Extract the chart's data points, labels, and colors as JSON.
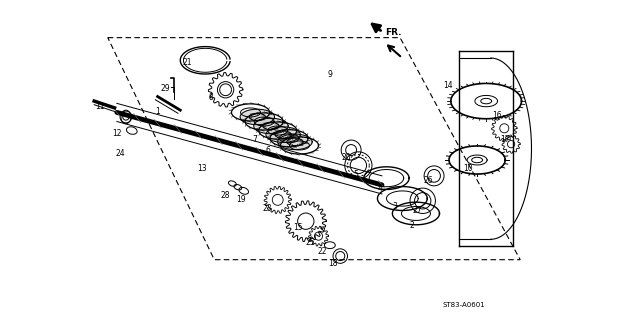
{
  "title": "",
  "diagram_code": "ST83-A0601",
  "background_color": "#ffffff",
  "line_color": "#000000",
  "fr_label": "FR.",
  "figsize": [
    6.37,
    3.2
  ],
  "dpi": 100
}
